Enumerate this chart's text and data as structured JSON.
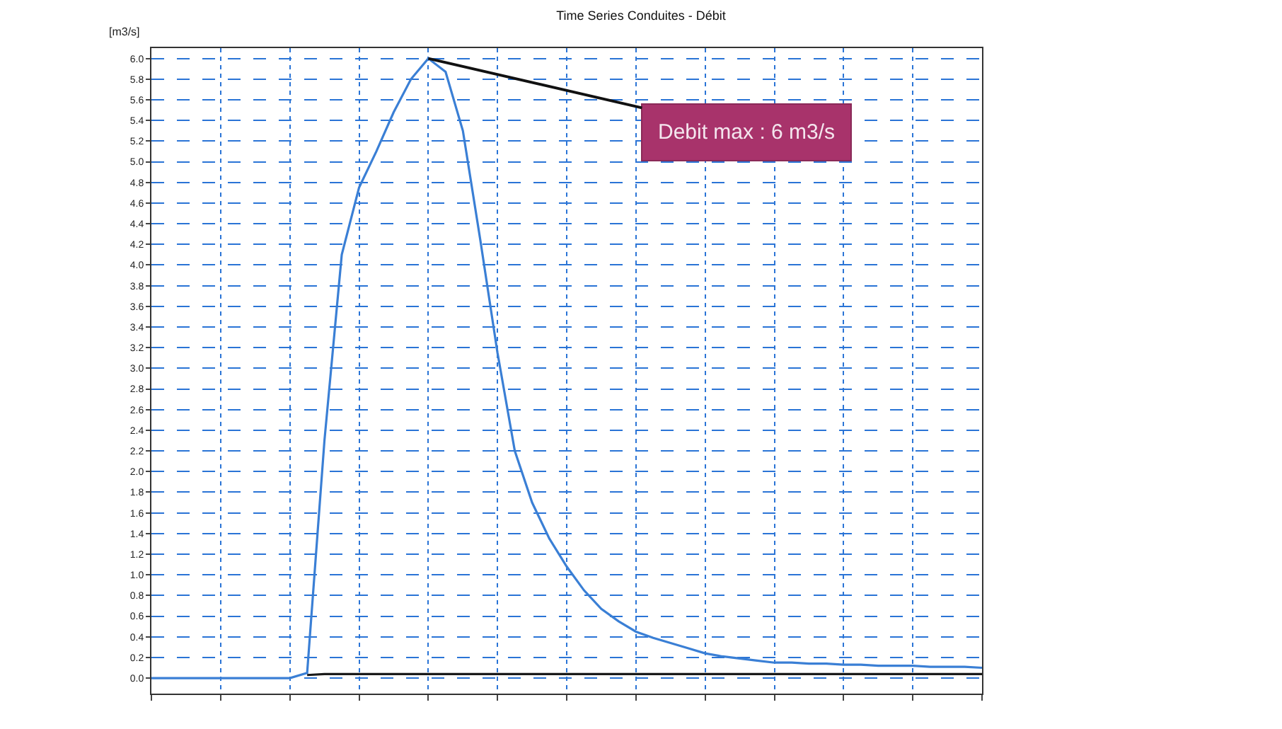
{
  "chart_data": {
    "type": "line",
    "title": "Time Series Conduites - Débit",
    "ylabel": "[m3/s]",
    "annotations": [
      "Debit max : 6 m3/s"
    ],
    "categories": [
      null,
      null,
      null,
      null,
      null,
      null,
      null,
      null,
      null,
      null,
      null,
      null,
      null,
      null,
      null,
      null,
      null,
      null,
      null,
      null,
      null,
      null,
      null,
      null,
      null,
      null,
      null,
      null,
      null,
      null,
      null,
      null,
      null,
      null,
      null,
      null,
      null,
      null,
      null,
      null,
      null,
      null,
      null,
      null,
      null,
      null,
      null,
      null,
      null
    ],
    "series": [
      {
        "color": "#3a7fd5",
        "values": [
          0,
          0,
          0,
          0,
          0,
          0,
          0,
          0,
          0,
          0.05,
          2.3,
          4.1,
          4.75,
          5.1,
          5.48,
          5.8,
          6.0,
          5.87,
          5.3,
          4.25,
          3.15,
          2.2,
          1.7,
          1.35,
          1.08,
          0.85,
          0.67,
          0.55,
          0.45,
          0.39,
          0.34,
          0.29,
          0.24,
          0.21,
          0.19,
          0.17,
          0.15,
          0.15,
          0.14,
          0.14,
          0.13,
          0.13,
          0.12,
          0.12,
          0.12,
          0.11,
          0.11,
          0.11,
          0.1
        ]
      },
      {
        "color": "#1a1a1a",
        "values": [
          null,
          null,
          null,
          null,
          null,
          null,
          null,
          null,
          null,
          0.03,
          0.04,
          0.04,
          0.04,
          0.04,
          0.04,
          0.04,
          0.04,
          0.04,
          0.04,
          0.04,
          0.04,
          0.04,
          0.04,
          0.04,
          0.04,
          0.04,
          0.04,
          0.04,
          0.04,
          0.04,
          0.04,
          0.04,
          0.04,
          0.04,
          0.04,
          0.04,
          0.04,
          0.04,
          0.04,
          0.04,
          0.04,
          0.04,
          0.04,
          0.04,
          0.04,
          0.04,
          0.04,
          0.04,
          0.04
        ]
      }
    ],
    "ylim": [
      -0.15,
      6.1
    ],
    "yticks": [
      {
        "value": 0,
        "label": "0.0"
      },
      {
        "value": 0.2,
        "label": "0.2"
      },
      {
        "value": 0.4,
        "label": "0.4"
      },
      {
        "value": 0.6,
        "label": "0.6"
      },
      {
        "value": 0.8,
        "label": "0.8"
      },
      {
        "value": 1,
        "label": "1.0"
      },
      {
        "value": 1.2,
        "label": "1.2"
      },
      {
        "value": 1.4,
        "label": "1.4"
      },
      {
        "value": 1.6,
        "label": "1.6"
      },
      {
        "value": 1.8,
        "label": "1.8"
      },
      {
        "value": 2,
        "label": "2.0"
      },
      {
        "value": 2.2,
        "label": "2.2"
      },
      {
        "value": 2.4,
        "label": "2.4"
      },
      {
        "value": 2.6,
        "label": "2.6"
      },
      {
        "value": 2.8,
        "label": "2.8"
      },
      {
        "value": 3,
        "label": "3.0"
      },
      {
        "value": 3.2,
        "label": "3.2"
      },
      {
        "value": 3.4,
        "label": "3.4"
      },
      {
        "value": 3.6,
        "label": "3.6"
      },
      {
        "value": 3.8,
        "label": "3.8"
      },
      {
        "value": 4,
        "label": "4.0"
      },
      {
        "value": 4.2,
        "label": "4.2"
      },
      {
        "value": 4.4,
        "label": "4.4"
      },
      {
        "value": 4.6,
        "label": "4.6"
      },
      {
        "value": 4.8,
        "label": "4.8"
      },
      {
        "value": 5,
        "label": "5.0"
      },
      {
        "value": 5.2,
        "label": "5.2"
      },
      {
        "value": 5.4,
        "label": "5.4"
      },
      {
        "value": 5.6,
        "label": "5.6"
      },
      {
        "value": 5.8,
        "label": "5.8"
      },
      {
        "value": 6,
        "label": "6.0"
      }
    ],
    "grid": true
  }
}
